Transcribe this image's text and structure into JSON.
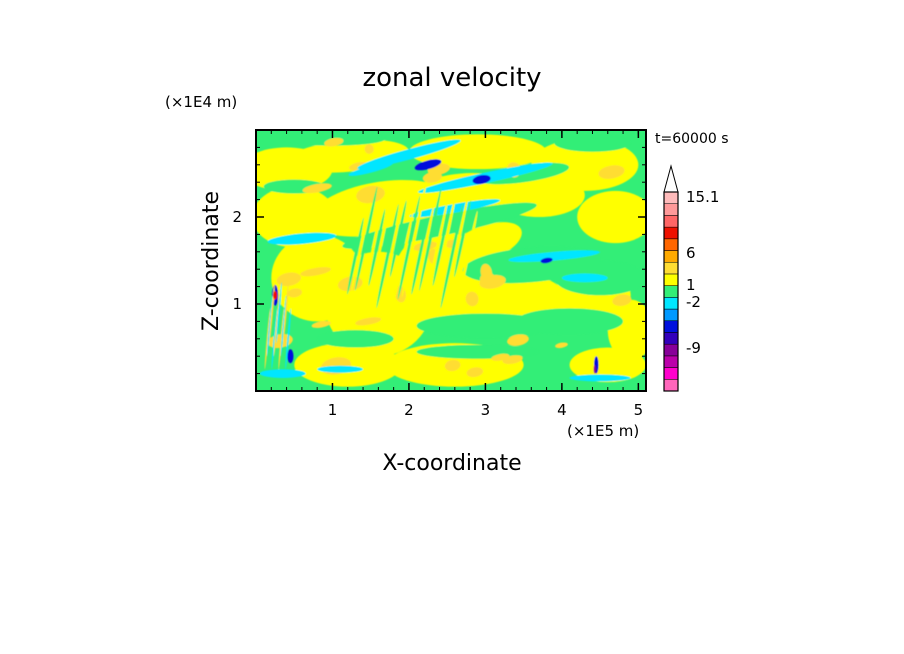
{
  "chart_data": {
    "type": "heatmap",
    "title": "zonal velocity",
    "xlabel": "X-coordinate",
    "ylabel": "Z-coordinate",
    "x_unit": "(×1E5 m)",
    "y_unit": "(×1E4 m)",
    "time_label": "t=60000 s",
    "xlim": [
      0,
      5.1
    ],
    "ylim": [
      0,
      3.0
    ],
    "x_ticks": [
      "1",
      "2",
      "3",
      "4",
      "5"
    ],
    "y_ticks": [
      "1",
      "2"
    ],
    "colorbar": {
      "levels": [
        "15.1",
        "6",
        "1",
        "-2",
        "-9"
      ],
      "bins": [
        {
          "color": "#ff66bb"
        },
        {
          "color": "#ff00cc"
        },
        {
          "color": "#bb00aa"
        },
        {
          "color": "#880099"
        },
        {
          "color": "#3300bb"
        },
        {
          "color": "#0011dd"
        },
        {
          "color": "#0099ff"
        },
        {
          "color": "#00e6ff"
        },
        {
          "color": "#33ee77"
        },
        {
          "color": "#ffff00"
        },
        {
          "color": "#ffdd33"
        },
        {
          "color": "#ffaa00"
        },
        {
          "color": "#ff6600"
        },
        {
          "color": "#ee1100"
        },
        {
          "color": "#ff6666"
        },
        {
          "color": "#ff9999"
        },
        {
          "color": "#ffbbbb"
        }
      ],
      "extend_max": true
    },
    "background_color": "#33ee77"
  }
}
